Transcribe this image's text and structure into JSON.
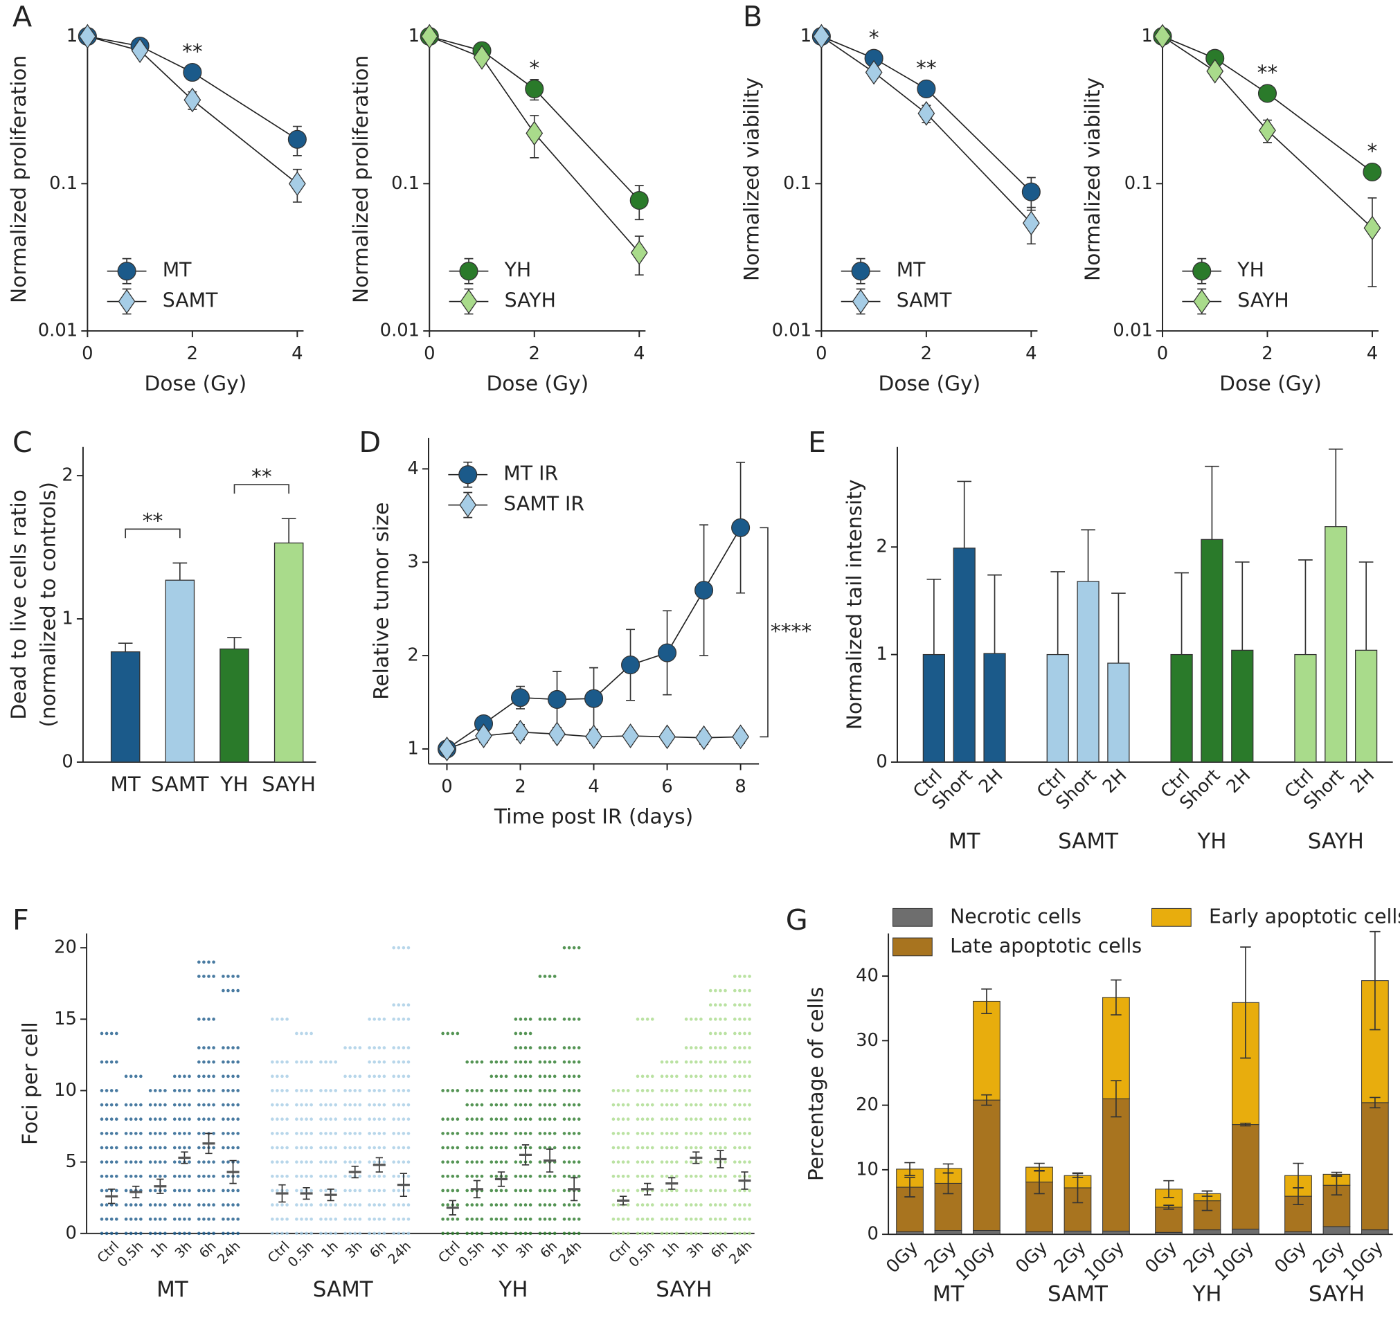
{
  "chart_data": [
    {
      "type": "line",
      "panel": "A",
      "ylabel": "Normalized proliferation",
      "xlabel": "Dose (Gy)",
      "log_y": true,
      "xlim": [
        0,
        4.12
      ],
      "ylim": [
        0.01,
        1.15
      ],
      "xticks": [
        0,
        2,
        4
      ],
      "yticks": [
        0.01,
        0.1,
        1
      ],
      "legend": "lower left",
      "x": [
        0,
        1,
        2,
        4
      ],
      "series": [
        {
          "name": "MT",
          "color": "#1b5a8a",
          "marker": "circle",
          "values": [
            1,
            0.86,
            0.57,
            0.2
          ],
          "errors": [
            0,
            0.03,
            0.06,
            0.045
          ]
        },
        {
          "name": "SAMT",
          "color": "#a6cde6",
          "marker": "diamond",
          "values": [
            1,
            0.8,
            0.37,
            0.1
          ],
          "errors": [
            0,
            0.04,
            0.05,
            0.025
          ]
        }
      ],
      "significance": [
        null,
        null,
        "**",
        null
      ]
    },
    {
      "type": "line",
      "ylabel": "Normalized proliferation",
      "xlabel": "Dose (Gy)",
      "log_y": true,
      "xlim": [
        0,
        4.12
      ],
      "ylim": [
        0.01,
        1.15
      ],
      "xticks": [
        0,
        2,
        4
      ],
      "yticks": [
        0.01,
        0.1,
        1
      ],
      "legend": "lower left",
      "x": [
        0,
        1,
        2,
        4
      ],
      "series": [
        {
          "name": "YH",
          "color": "#2a7a2a",
          "marker": "circle",
          "values": [
            1,
            0.8,
            0.44,
            0.077
          ],
          "errors": [
            0,
            0.03,
            0.07,
            0.02
          ]
        },
        {
          "name": "SAYH",
          "color": "#a9db8b",
          "marker": "diamond",
          "values": [
            1,
            0.72,
            0.22,
            0.034
          ],
          "errors": [
            0,
            0.05,
            0.07,
            0.01
          ]
        }
      ],
      "significance": [
        null,
        null,
        "*",
        null
      ]
    },
    {
      "type": "line",
      "panel": "B",
      "ylabel": "Normalized viability",
      "xlabel": "Dose (Gy)",
      "log_y": true,
      "xlim": [
        0,
        4.12
      ],
      "ylim": [
        0.01,
        1.15
      ],
      "xticks": [
        0,
        2,
        4
      ],
      "yticks": [
        0.01,
        0.1,
        1
      ],
      "legend": "lower left",
      "x": [
        0,
        1,
        2,
        4
      ],
      "series": [
        {
          "name": "MT",
          "color": "#1b5a8a",
          "marker": "circle",
          "values": [
            1,
            0.71,
            0.44,
            0.088
          ],
          "errors": [
            0,
            0.03,
            0.03,
            0.022
          ]
        },
        {
          "name": "SAMT",
          "color": "#a6cde6",
          "marker": "diamond",
          "values": [
            1,
            0.57,
            0.3,
            0.054
          ],
          "errors": [
            0,
            0.05,
            0.04,
            0.015
          ]
        }
      ],
      "significance": [
        null,
        "*",
        "**",
        null
      ]
    },
    {
      "type": "line",
      "ylabel": "Normalized viability",
      "xlabel": "Dose (Gy)",
      "log_y": true,
      "xlim": [
        0,
        4.12
      ],
      "ylim": [
        0.01,
        1.15
      ],
      "xticks": [
        0,
        2,
        4
      ],
      "yticks": [
        0.01,
        0.1,
        1
      ],
      "legend": "lower left",
      "x": [
        0,
        1,
        2,
        4
      ],
      "series": [
        {
          "name": "YH",
          "color": "#2a7a2a",
          "marker": "circle",
          "values": [
            1,
            0.71,
            0.41,
            0.12
          ],
          "errors": [
            0,
            0.03,
            0.03,
            0.01
          ]
        },
        {
          "name": "SAYH",
          "color": "#a9db8b",
          "marker": "diamond",
          "values": [
            1,
            0.58,
            0.23,
            0.05
          ],
          "errors": [
            0,
            0.05,
            0.04,
            0.03
          ]
        }
      ],
      "significance": [
        null,
        null,
        "**",
        "*"
      ]
    },
    {
      "type": "bar",
      "panel": "C",
      "ylabel": [
        "Dead to live cells ratio",
        "(normalized to controls)"
      ],
      "categories": [
        "MT",
        "SAMT",
        "YH",
        "SAYH"
      ],
      "values": [
        0.77,
        1.27,
        0.79,
        1.53
      ],
      "errors": [
        0.06,
        0.12,
        0.08,
        0.17
      ],
      "colors": [
        "#1b5a8a",
        "#a6cde6",
        "#2a7a2a",
        "#a9db8b"
      ],
      "significance": [
        null,
        "**",
        null,
        "**"
      ],
      "ylim": [
        0,
        2.2
      ],
      "yticks": [
        0,
        1,
        2
      ]
    },
    {
      "type": "line",
      "panel": "D",
      "ylabel": "Relative tumor size",
      "xlabel": "Time post IR (days)",
      "xlim": [
        -0.5,
        8.5
      ],
      "ylim": [
        0.84,
        4.33
      ],
      "xticks": [
        0,
        2,
        4,
        6,
        8
      ],
      "yticks": [
        1,
        2,
        3,
        4
      ],
      "legend": "upper left",
      "x": [
        0,
        1,
        2,
        3,
        4,
        5,
        6,
        7,
        8
      ],
      "series": [
        {
          "name": "MT IR",
          "color": "#1b5a8a",
          "marker": "circle",
          "values": [
            1,
            1.27,
            1.55,
            1.53,
            1.54,
            1.9,
            2.03,
            2.7,
            3.37
          ],
          "errors": [
            0.03,
            0.05,
            0.12,
            0.3,
            0.33,
            0.38,
            0.45,
            0.7,
            0.7
          ]
        },
        {
          "name": "SAMT IR",
          "color": "#a6cde6",
          "marker": "diamond",
          "values": [
            1,
            1.14,
            1.18,
            1.16,
            1.13,
            1.14,
            1.13,
            1.12,
            1.13
          ],
          "errors": [
            0.03,
            0.07,
            0.08,
            0.07,
            0.07,
            0.06,
            0.06,
            0.07,
            0.07
          ]
        }
      ],
      "end_significance": "****"
    },
    {
      "type": "grouped_bar",
      "panel": "E",
      "ylabel": "Normalized tail intensity",
      "groups": [
        "MT",
        "SAMT",
        "YH",
        "SAYH"
      ],
      "categories": [
        "Ctrl",
        "Short",
        "2H"
      ],
      "colors": [
        "#1b5a8a",
        "#a6cde6",
        "#2a7a2a",
        "#a9db8b"
      ],
      "values": [
        [
          1,
          1.99,
          1.01
        ],
        [
          1,
          1.68,
          0.92
        ],
        [
          1,
          2.07,
          1.04
        ],
        [
          1,
          2.19,
          1.04
        ]
      ],
      "errors": [
        [
          0.7,
          0.62,
          0.73
        ],
        [
          0.77,
          0.48,
          0.65
        ],
        [
          0.76,
          0.68,
          0.82
        ],
        [
          0.88,
          0.72,
          0.82
        ]
      ],
      "ylim": [
        0,
        2.93
      ],
      "yticks": [
        0,
        1,
        2
      ]
    },
    {
      "type": "strip",
      "panel": "F",
      "ylabel": "Foci per cell",
      "groups": [
        "MT",
        "SAMT",
        "YH",
        "SAYH"
      ],
      "categories": [
        "Ctrl",
        "0.5h",
        "1h",
        "3h",
        "6h",
        "24h"
      ],
      "colors": [
        "#1b5a8a",
        "#a6cde6",
        "#2a7a2a",
        "#a9db8b"
      ],
      "points": [
        [
          [
            0,
            1,
            2,
            3,
            4,
            5,
            6,
            7,
            8,
            9,
            10,
            12,
            14
          ],
          [
            0,
            1,
            2,
            3,
            4,
            5,
            6,
            7,
            8,
            9,
            11
          ],
          [
            0,
            1,
            2,
            3,
            4,
            5,
            6,
            7,
            8,
            9,
            10
          ],
          [
            0,
            1,
            2,
            3,
            4,
            5,
            6,
            7,
            8,
            9,
            10,
            11
          ],
          [
            0,
            1,
            2,
            3,
            4,
            5,
            6,
            7,
            8,
            9,
            10,
            11,
            12,
            13,
            15,
            18,
            19
          ],
          [
            0,
            1,
            2,
            3,
            4,
            5,
            6,
            7,
            8,
            9,
            10,
            11,
            12,
            13,
            17,
            18
          ]
        ],
        [
          [
            0,
            1,
            2,
            3,
            4,
            5,
            6,
            7,
            8,
            9,
            10,
            11,
            12,
            15
          ],
          [
            0,
            1,
            2,
            3,
            4,
            5,
            6,
            7,
            8,
            9,
            10,
            12,
            14
          ],
          [
            0,
            1,
            2,
            3,
            4,
            5,
            6,
            7,
            8,
            9,
            10,
            12
          ],
          [
            0,
            1,
            2,
            3,
            4,
            5,
            6,
            7,
            8,
            9,
            10,
            11,
            13
          ],
          [
            0,
            1,
            2,
            3,
            4,
            5,
            6,
            7,
            8,
            9,
            10,
            11,
            12,
            13,
            15
          ],
          [
            0,
            1,
            2,
            3,
            4,
            5,
            6,
            7,
            8,
            9,
            10,
            11,
            12,
            13,
            15,
            16,
            20
          ]
        ],
        [
          [
            0,
            1,
            2,
            3,
            4,
            5,
            6,
            7,
            8,
            10,
            14
          ],
          [
            0,
            1,
            2,
            3,
            4,
            5,
            6,
            7,
            8,
            9,
            10,
            12
          ],
          [
            0,
            1,
            2,
            3,
            4,
            5,
            6,
            7,
            8,
            9,
            10,
            11,
            12
          ],
          [
            0,
            1,
            2,
            3,
            4,
            5,
            6,
            7,
            8,
            9,
            10,
            11,
            12,
            13,
            14,
            15
          ],
          [
            0,
            1,
            2,
            3,
            4,
            5,
            6,
            7,
            8,
            9,
            10,
            11,
            12,
            13,
            15,
            18
          ],
          [
            0,
            1,
            2,
            3,
            4,
            5,
            6,
            7,
            8,
            9,
            10,
            11,
            12,
            13,
            15,
            20
          ]
        ],
        [
          [
            0,
            1,
            2,
            3,
            4,
            5,
            6,
            7,
            8,
            9,
            10
          ],
          [
            0,
            1,
            2,
            3,
            4,
            5,
            6,
            7,
            8,
            9,
            10,
            11,
            15
          ],
          [
            0,
            1,
            2,
            3,
            4,
            5,
            6,
            7,
            8,
            9,
            10,
            11,
            12
          ],
          [
            0,
            1,
            2,
            3,
            4,
            5,
            6,
            7,
            8,
            9,
            10,
            11,
            12,
            13,
            15
          ],
          [
            0,
            1,
            2,
            3,
            4,
            5,
            6,
            7,
            8,
            9,
            10,
            11,
            12,
            13,
            14,
            15,
            16,
            17
          ],
          [
            0,
            1,
            2,
            3,
            4,
            5,
            6,
            7,
            8,
            9,
            10,
            11,
            12,
            13,
            14,
            15,
            16,
            17,
            18
          ]
        ]
      ],
      "means": [
        [
          2.6,
          2.9,
          3.3,
          5.3,
          6.3,
          4.3
        ],
        [
          2.8,
          2.8,
          2.7,
          4.3,
          4.8,
          3.4
        ],
        [
          1.8,
          3.1,
          3.8,
          5.5,
          5.1,
          3.1
        ],
        [
          2.3,
          3.1,
          3.5,
          5.3,
          5.2,
          3.7
        ]
      ],
      "errors": [
        [
          0.5,
          0.4,
          0.5,
          0.4,
          0.7,
          0.8
        ],
        [
          0.6,
          0.4,
          0.4,
          0.4,
          0.5,
          0.8
        ],
        [
          0.5,
          0.6,
          0.5,
          0.7,
          0.8,
          0.8
        ],
        [
          0.3,
          0.4,
          0.4,
          0.4,
          0.6,
          0.6
        ]
      ],
      "ylim": [
        0,
        21
      ],
      "yticks": [
        0,
        5,
        10,
        15,
        20
      ]
    },
    {
      "type": "stacked_bar",
      "panel": "G",
      "ylabel": "Percentage of cells",
      "groups": [
        "MT",
        "SAMT",
        "YH",
        "SAYH"
      ],
      "categories": [
        "0Gy",
        "2Gy",
        "10Gy"
      ],
      "series": [
        {
          "name": "Necrotic cells",
          "color": "#6e6e6e",
          "values": [
            [
              0.4,
              0.6,
              0.6
            ],
            [
              0.4,
              0.5,
              0.5
            ],
            [
              0.3,
              0.7,
              0.8
            ],
            [
              0.4,
              1.2,
              0.7
            ]
          ]
        },
        {
          "name": "Late apoptotic cells",
          "color": "#a8741f",
          "values": [
            [
              6.9,
              7.3,
              20.2
            ],
            [
              7.7,
              6.7,
              20.5
            ],
            [
              3.9,
              4.5,
              16.2
            ],
            [
              5.5,
              6.4,
              19.7
            ]
          ],
          "errors": [
            [
              1.5,
              1.6,
              0.8
            ],
            [
              1.8,
              2.3,
              2.8
            ],
            [
              0.3,
              1.5,
              0.2
            ],
            [
              1.3,
              1.5,
              0.8
            ]
          ]
        },
        {
          "name": "Early apoptotic cells",
          "color": "#e8ad0d",
          "values": [
            [
              2.8,
              2.3,
              15.3
            ],
            [
              2.3,
              1.9,
              15.7
            ],
            [
              2.8,
              1.1,
              18.9
            ],
            [
              3.2,
              1.7,
              18.9
            ]
          ],
          "errors": [
            [
              1,
              0.7,
              1.9
            ],
            [
              0.6,
              0.3,
              2.7
            ],
            [
              1.3,
              0.4,
              8.6
            ],
            [
              1.9,
              0.3,
              7.6
            ]
          ]
        }
      ],
      "ylim": [
        0,
        46.6
      ],
      "yticks": [
        0,
        10,
        20,
        30,
        40
      ],
      "legend": "upper left"
    }
  ]
}
